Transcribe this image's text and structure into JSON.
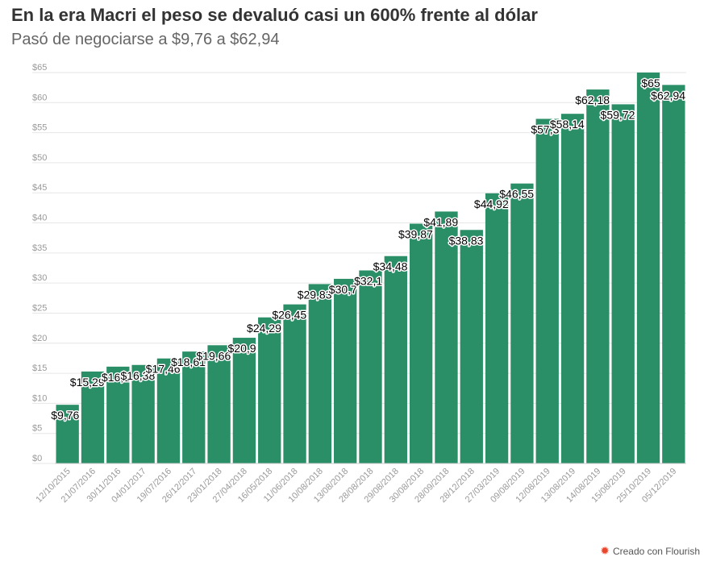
{
  "title": "En la era Macri el peso se devaluó casi un 600% frente al dólar",
  "subtitle": "Pasó de negociarse a $9,76 a $62,94",
  "credit": "Creado con Flourish",
  "colors": {
    "bar": "#2a8f67",
    "grid": "#e6e6e6",
    "axis": "#999999"
  },
  "chart_data": {
    "type": "bar",
    "categories": [
      "12/10/2015",
      "21/07/2016",
      "30/11/2016",
      "04/01/2017",
      "19/07/2016",
      "26/12/2017",
      "23/01/2018",
      "27/04/2018",
      "16/05/2018",
      "11/06/2018",
      "10/08/2018",
      "13/08/2018",
      "28/08/2018",
      "29/08/2018",
      "30/08/2018",
      "28/09/2018",
      "28/12/2018",
      "27/03/2019",
      "09/08/2019",
      "12/08/2019",
      "13/08/2019",
      "14/08/2019",
      "15/08/2019",
      "25/10/2019",
      "05/12/2019"
    ],
    "values": [
      9.76,
      15.29,
      16.1,
      16.38,
      17.46,
      18.61,
      19.66,
      20.9,
      24.29,
      26.45,
      29.83,
      30.7,
      32.1,
      34.48,
      39.87,
      41.89,
      38.83,
      44.92,
      46.55,
      57.3,
      58.14,
      62.18,
      59.72,
      65,
      62.94
    ],
    "labels": [
      "$9,76",
      "$15,29",
      "$16,1",
      "$16,38",
      "$17,46",
      "$18,61",
      "$19,66",
      "$20,9",
      "$24,29",
      "$26,45",
      "$29,83",
      "$30,7",
      "$32,1",
      "$34,48",
      "$39,87",
      "$41,89",
      "$38,83",
      "$44,92",
      "$46,55",
      "$57,3",
      "$58,14",
      "$62,18",
      "$59,72",
      "$65",
      "$62,94"
    ],
    "yticks": [
      "$0",
      "$5",
      "$10",
      "$15",
      "$20",
      "$25",
      "$30",
      "$35",
      "$40",
      "$45",
      "$50",
      "$55",
      "$60",
      "$65"
    ],
    "ylim": [
      0,
      65
    ],
    "grid": true,
    "legend": "none"
  }
}
